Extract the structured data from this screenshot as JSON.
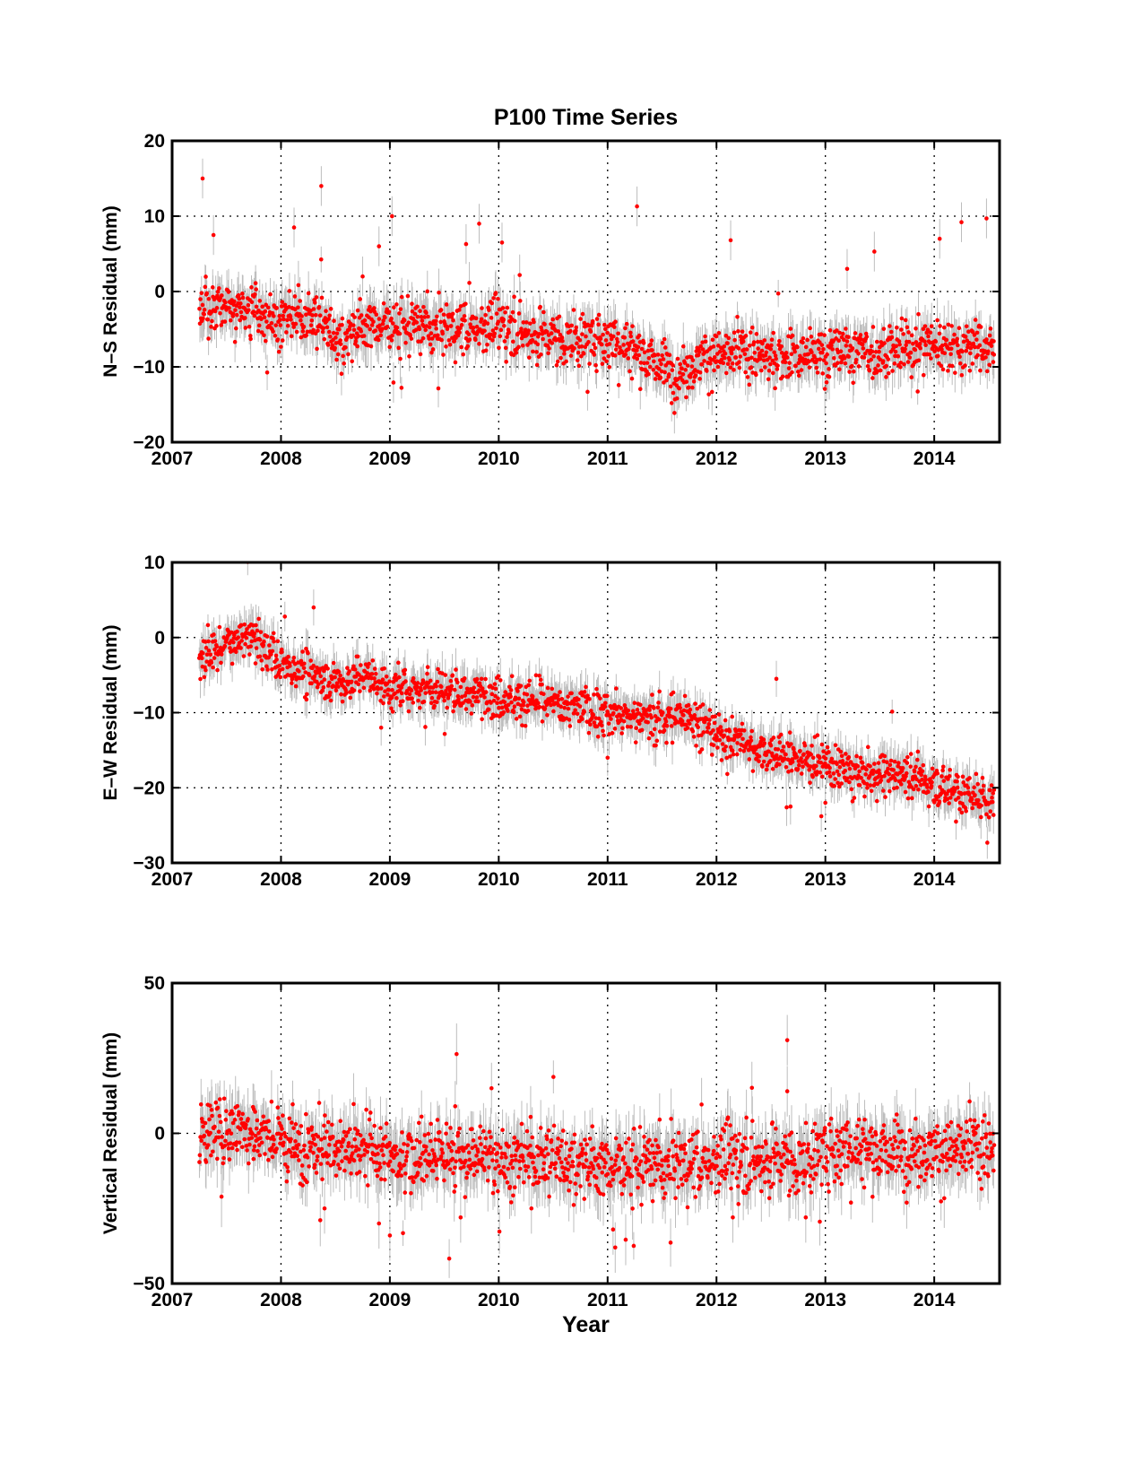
{
  "chart_data": [
    {
      "type": "scatter",
      "title": "P100 Time Series",
      "xlabel": "",
      "ylabel": "N–S Residual (mm)",
      "xlim": [
        2007,
        2014.6
      ],
      "ylim": [
        -20,
        20
      ],
      "xticks": [
        "2007",
        "2008",
        "2009",
        "2010",
        "2011",
        "2012",
        "2013",
        "2014"
      ],
      "yticks": [
        "20",
        "10",
        "0",
        "−10",
        "−20"
      ],
      "ytick_values": [
        20,
        10,
        0,
        -10,
        -20
      ],
      "grid": true,
      "point_color": "#ff0000",
      "errorbar_color": "#bdbdbd",
      "trend": [
        [
          2007.25,
          -2
        ],
        [
          2007.5,
          -2
        ],
        [
          2008.0,
          -3.5
        ],
        [
          2008.3,
          -3.5
        ],
        [
          2008.55,
          -6.5
        ],
        [
          2008.8,
          -4
        ],
        [
          2009.5,
          -5
        ],
        [
          2010.0,
          -4.5
        ],
        [
          2010.5,
          -6
        ],
        [
          2011.0,
          -6.5
        ],
        [
          2011.3,
          -8
        ],
        [
          2011.65,
          -11
        ],
        [
          2011.9,
          -8.5
        ],
        [
          2012.5,
          -8.5
        ],
        [
          2013.0,
          -8
        ],
        [
          2013.5,
          -8
        ],
        [
          2014.0,
          -7
        ],
        [
          2014.55,
          -7.5
        ]
      ],
      "outliers": [
        [
          2007.28,
          15
        ],
        [
          2008.37,
          14
        ],
        [
          2011.27,
          11.3
        ],
        [
          2007.38,
          7.5
        ],
        [
          2008.12,
          8.5
        ],
        [
          2009.02,
          10
        ],
        [
          2009.7,
          6.3
        ],
        [
          2009.82,
          9
        ],
        [
          2010.03,
          6.5
        ],
        [
          2012.13,
          6.8
        ],
        [
          2013.45,
          5.3
        ],
        [
          2014.05,
          7
        ],
        [
          2014.25,
          9.2
        ],
        [
          2014.48,
          9.7
        ],
        [
          2008.9,
          6
        ],
        [
          2008.75,
          2
        ],
        [
          2013.2,
          3
        ]
      ]
    },
    {
      "type": "scatter",
      "title": "",
      "xlabel": "",
      "ylabel": "E–W Residual (mm)",
      "xlim": [
        2007,
        2014.6
      ],
      "ylim": [
        -30,
        10
      ],
      "xticks": [
        "2007",
        "2008",
        "2009",
        "2010",
        "2011",
        "2012",
        "2013",
        "2014"
      ],
      "yticks": [
        "10",
        "0",
        "−10",
        "−20",
        "−30"
      ],
      "ytick_values": [
        10,
        0,
        -10,
        -20,
        -30
      ],
      "grid": true,
      "point_color": "#ff0000",
      "errorbar_color": "#bdbdbd",
      "trend": [
        [
          2007.25,
          -2.5
        ],
        [
          2007.5,
          -1
        ],
        [
          2007.7,
          0
        ],
        [
          2008.0,
          -3
        ],
        [
          2008.35,
          -5.5
        ],
        [
          2008.55,
          -6
        ],
        [
          2008.8,
          -5
        ],
        [
          2009.0,
          -7
        ],
        [
          2009.5,
          -7
        ],
        [
          2010.0,
          -8
        ],
        [
          2010.3,
          -8.5
        ],
        [
          2010.6,
          -9
        ],
        [
          2011.0,
          -10
        ],
        [
          2011.4,
          -11
        ],
        [
          2011.7,
          -10
        ],
        [
          2012.0,
          -13
        ],
        [
          2012.5,
          -15
        ],
        [
          2013.0,
          -17
        ],
        [
          2013.3,
          -18.5
        ],
        [
          2013.7,
          -18
        ],
        [
          2014.0,
          -19.5
        ],
        [
          2014.55,
          -22
        ]
      ],
      "outliers": [
        [
          2008.3,
          4
        ],
        [
          2012.55,
          -5.5
        ],
        [
          2011.0,
          -16
        ],
        [
          2008.92,
          -12
        ],
        [
          2012.68,
          -22.5
        ],
        [
          2013.0,
          -22
        ],
        [
          2014.2,
          -24.5
        ]
      ]
    },
    {
      "type": "scatter",
      "title": "",
      "xlabel": "Year",
      "ylabel": "Vertical Residual (mm)",
      "xlim": [
        2007,
        2014.6
      ],
      "ylim": [
        -50,
        50
      ],
      "xticks": [
        "2007",
        "2008",
        "2009",
        "2010",
        "2011",
        "2012",
        "2013",
        "2014"
      ],
      "yticks": [
        "50",
        "0",
        "−50"
      ],
      "ytick_values": [
        50,
        0,
        -50
      ],
      "grid": true,
      "point_color": "#ff0000",
      "errorbar_color": "#bdbdbd",
      "trend": [
        [
          2007.25,
          0
        ],
        [
          2007.6,
          2
        ],
        [
          2008.0,
          -3
        ],
        [
          2008.5,
          -5
        ],
        [
          2009.0,
          -8
        ],
        [
          2009.5,
          -7
        ],
        [
          2010.0,
          -8
        ],
        [
          2010.5,
          -9
        ],
        [
          2011.0,
          -10
        ],
        [
          2011.5,
          -11
        ],
        [
          2012.0,
          -9
        ],
        [
          2012.5,
          -8
        ],
        [
          2012.8,
          -9
        ],
        [
          2013.0,
          -6
        ],
        [
          2013.5,
          -5
        ],
        [
          2014.0,
          -6
        ],
        [
          2014.55,
          -6
        ]
      ],
      "outliers": [
        [
          2012.65,
          31
        ],
        [
          2012.65,
          14
        ],
        [
          2011.07,
          -38
        ],
        [
          2011.05,
          -32
        ],
        [
          2009.0,
          -34
        ],
        [
          2008.4,
          -25
        ],
        [
          2009.65,
          -28
        ],
        [
          2012.15,
          -28
        ],
        [
          2012.82,
          -28
        ],
        [
          2008.9,
          -30
        ],
        [
          2010.3,
          -25
        ],
        [
          2007.75,
          8
        ],
        [
          2009.6,
          9
        ]
      ]
    }
  ]
}
